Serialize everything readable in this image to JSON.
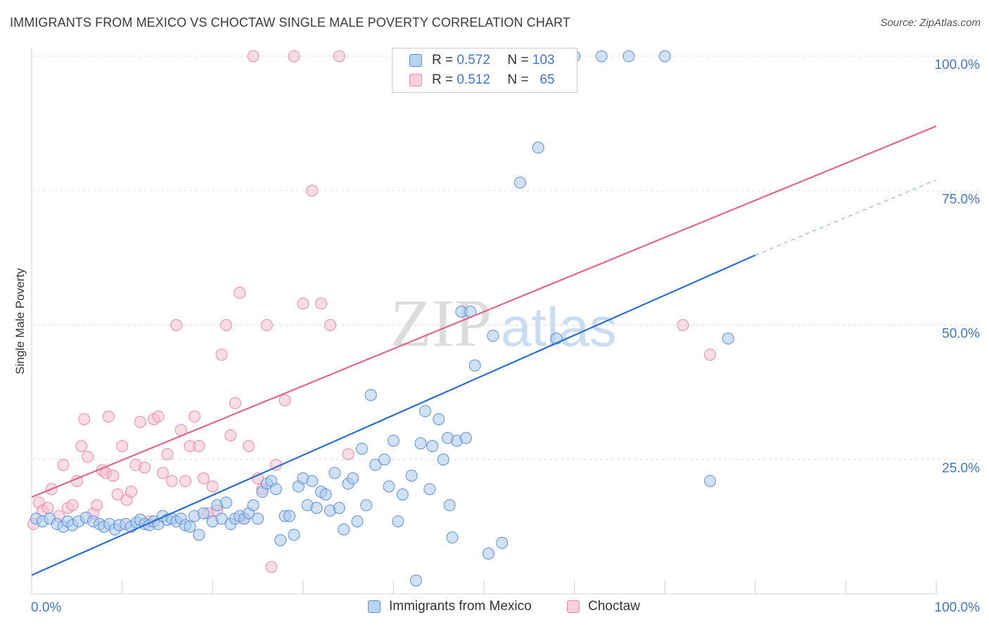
{
  "title": "IMMIGRANTS FROM MEXICO VS CHOCTAW SINGLE MALE POVERTY CORRELATION CHART",
  "source": "Source: ZipAtlas.com",
  "watermark": {
    "zip": "ZIP",
    "atlas": "atlas"
  },
  "legend": {
    "rows": [
      {
        "r_label": "R =",
        "r_value": "0.572",
        "n_label": "N =",
        "n_value": "103"
      },
      {
        "r_label": "R =",
        "r_value": "0.512",
        "n_label": "N =",
        "n_value": "65"
      }
    ]
  },
  "colors": {
    "blue_fill": "#a9c8ee",
    "blue_stroke": "#5b8fd6",
    "blue_line": "#2d6fcc",
    "pink_fill": "#f6bfd0",
    "pink_stroke": "#e98aa8",
    "pink_line": "#e06690",
    "axis_text": "#3f78c8",
    "grid": "#dddddd"
  },
  "chart_data": {
    "type": "scatter",
    "title": "IMMIGRANTS FROM MEXICO VS CHOCTAW SINGLE MALE POVERTY CORRELATION CHART",
    "xlabel": "",
    "ylabel": "Single Male Poverty",
    "xlim": [
      0,
      100
    ],
    "ylim": [
      0,
      100
    ],
    "x_tick_labels": [
      {
        "value": 0,
        "label": "0.0%"
      },
      {
        "value": 100,
        "label": "100.0%"
      }
    ],
    "y_tick_labels": [
      {
        "value": 25,
        "label": "25.0%"
      },
      {
        "value": 50,
        "label": "50.0%"
      },
      {
        "value": 75,
        "label": "75.0%"
      },
      {
        "value": 100,
        "label": "100.0%"
      }
    ],
    "grid": true,
    "legend_placement": "top-center",
    "series": [
      {
        "name": "Immigrants from Mexico",
        "r": 0.572,
        "n": 103,
        "trend": {
          "x0": 0,
          "y0": 3.5,
          "x1": 80,
          "y1": 63,
          "dashed_x_end": 100,
          "dashed_y_end": 77
        },
        "points": [
          [
            0.5,
            14
          ],
          [
            1.2,
            13.5
          ],
          [
            2,
            14
          ],
          [
            2.8,
            13
          ],
          [
            3.5,
            12.5
          ],
          [
            4,
            13.5
          ],
          [
            4.5,
            12.8
          ],
          [
            5.2,
            13.5
          ],
          [
            6,
            14.2
          ],
          [
            6.8,
            13.5
          ],
          [
            7.5,
            13
          ],
          [
            8,
            12.5
          ],
          [
            8.6,
            13
          ],
          [
            9.2,
            12
          ],
          [
            9.7,
            12.8
          ],
          [
            10.4,
            13
          ],
          [
            11,
            12.5
          ],
          [
            11.6,
            13.3
          ],
          [
            12,
            13.8
          ],
          [
            12.5,
            13
          ],
          [
            13,
            12.8
          ],
          [
            13.5,
            13.5
          ],
          [
            14,
            13
          ],
          [
            14.5,
            14.5
          ],
          [
            15,
            13.8
          ],
          [
            15.5,
            14
          ],
          [
            16,
            13.5
          ],
          [
            16.5,
            14
          ],
          [
            17,
            12.8
          ],
          [
            17.5,
            12.5
          ],
          [
            18,
            14.5
          ],
          [
            19,
            15
          ],
          [
            18.5,
            11
          ],
          [
            20,
            13.5
          ],
          [
            20.5,
            16.5
          ],
          [
            21,
            14
          ],
          [
            21.5,
            17
          ],
          [
            22,
            13
          ],
          [
            22.5,
            14
          ],
          [
            23,
            14.5
          ],
          [
            23.5,
            14
          ],
          [
            24,
            15
          ],
          [
            24.5,
            16.5
          ],
          [
            25,
            14
          ],
          [
            25.5,
            19
          ],
          [
            26,
            20.5
          ],
          [
            26.5,
            21
          ],
          [
            27,
            19.5
          ],
          [
            27.5,
            10
          ],
          [
            28,
            14.5
          ],
          [
            28.5,
            14.5
          ],
          [
            29,
            11
          ],
          [
            29.5,
            20
          ],
          [
            30,
            21.5
          ],
          [
            30.5,
            16.5
          ],
          [
            31,
            21
          ],
          [
            31.5,
            16
          ],
          [
            32,
            19
          ],
          [
            32.5,
            18.5
          ],
          [
            33,
            15.5
          ],
          [
            33.5,
            22.5
          ],
          [
            34,
            16
          ],
          [
            34.5,
            12
          ],
          [
            35,
            20.5
          ],
          [
            35.5,
            21.5
          ],
          [
            36,
            13.5
          ],
          [
            36.5,
            27
          ],
          [
            37,
            16.5
          ],
          [
            37.5,
            37
          ],
          [
            38,
            24
          ],
          [
            39,
            25
          ],
          [
            39.5,
            20
          ],
          [
            40,
            28.5
          ],
          [
            40.5,
            13.5
          ],
          [
            41,
            18.5
          ],
          [
            42,
            22
          ],
          [
            42.5,
            2.5
          ],
          [
            43,
            28
          ],
          [
            43.5,
            34
          ],
          [
            44,
            19.5
          ],
          [
            44.3,
            27.5
          ],
          [
            45,
            32.5
          ],
          [
            45.5,
            25
          ],
          [
            46,
            29
          ],
          [
            46.2,
            16.5
          ],
          [
            46.5,
            10.5
          ],
          [
            47,
            28.5
          ],
          [
            47.5,
            52.5
          ],
          [
            48,
            29
          ],
          [
            48.5,
            52.5
          ],
          [
            49,
            42.5
          ],
          [
            50.5,
            7.5
          ],
          [
            51,
            48
          ],
          [
            52,
            9.5
          ],
          [
            54,
            76.5
          ],
          [
            56,
            83
          ],
          [
            58,
            47.5
          ],
          [
            60,
            100
          ],
          [
            63,
            100
          ],
          [
            66,
            100
          ],
          [
            70,
            100
          ],
          [
            75,
            21
          ],
          [
            77,
            47.5
          ]
        ]
      },
      {
        "name": "Choctaw",
        "r": 0.512,
        "n": 65,
        "trend": {
          "x0": 0,
          "y0": 18,
          "x1": 100,
          "y1": 87
        },
        "points": [
          [
            0.2,
            13
          ],
          [
            0.8,
            17
          ],
          [
            1.2,
            15.5
          ],
          [
            1.8,
            16
          ],
          [
            2.2,
            19.5
          ],
          [
            3,
            14.5
          ],
          [
            3.5,
            24
          ],
          [
            4,
            16
          ],
          [
            4.5,
            16.5
          ],
          [
            5,
            21
          ],
          [
            5.5,
            27.5
          ],
          [
            5.8,
            32.5
          ],
          [
            6.2,
            25.5
          ],
          [
            6.8,
            15
          ],
          [
            7.2,
            16.5
          ],
          [
            7.8,
            23
          ],
          [
            8.2,
            22.5
          ],
          [
            8.5,
            33
          ],
          [
            9,
            22
          ],
          [
            9.5,
            18.5
          ],
          [
            10,
            27.5
          ],
          [
            10.5,
            17.5
          ],
          [
            11,
            19
          ],
          [
            11.5,
            24
          ],
          [
            12,
            32
          ],
          [
            12.5,
            23.5
          ],
          [
            13,
            13.5
          ],
          [
            13.5,
            32.5
          ],
          [
            14,
            33
          ],
          [
            14.5,
            22.5
          ],
          [
            15,
            26
          ],
          [
            15.5,
            21
          ],
          [
            16,
            50
          ],
          [
            16.5,
            30.5
          ],
          [
            17,
            21
          ],
          [
            17.5,
            27.5
          ],
          [
            18,
            33
          ],
          [
            18.5,
            27.5
          ],
          [
            19,
            21.5
          ],
          [
            19.5,
            15
          ],
          [
            20,
            20
          ],
          [
            20.5,
            15.5
          ],
          [
            21,
            44.5
          ],
          [
            21.5,
            50
          ],
          [
            22,
            29.5
          ],
          [
            22.5,
            35.5
          ],
          [
            23,
            56
          ],
          [
            23.5,
            14
          ],
          [
            24,
            27.5
          ],
          [
            24.5,
            100
          ],
          [
            25,
            21.5
          ],
          [
            25.5,
            19.5
          ],
          [
            26,
            50
          ],
          [
            26.5,
            5
          ],
          [
            27,
            24
          ],
          [
            28,
            36
          ],
          [
            29,
            100
          ],
          [
            30,
            54
          ],
          [
            31,
            75
          ],
          [
            32,
            54
          ],
          [
            33,
            50
          ],
          [
            34,
            100
          ],
          [
            35,
            26
          ],
          [
            75,
            44.5
          ],
          [
            72,
            50
          ]
        ]
      }
    ]
  }
}
